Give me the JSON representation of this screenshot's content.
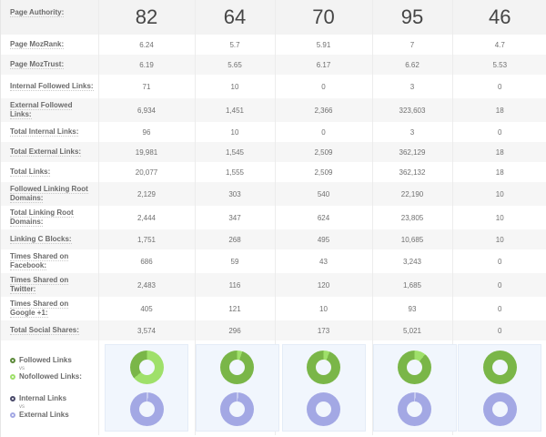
{
  "columns_count": 5,
  "header": {
    "label": "Page Authority:",
    "values": [
      "82",
      "64",
      "70",
      "95",
      "46"
    ]
  },
  "rows": [
    {
      "label": "Page MozRank:",
      "values": [
        "6.24",
        "5.7",
        "5.91",
        "7",
        "4.7"
      ]
    },
    {
      "label": "Page MozTrust:",
      "values": [
        "6.19",
        "5.65",
        "6.17",
        "6.62",
        "5.53"
      ]
    },
    {
      "label": "Internal Followed Links:",
      "values": [
        "71",
        "10",
        "0",
        "3",
        "0"
      ]
    },
    {
      "label": "External Followed Links:",
      "values": [
        "6,934",
        "1,451",
        "2,366",
        "323,603",
        "18"
      ]
    },
    {
      "label": "Total Internal Links:",
      "values": [
        "96",
        "10",
        "0",
        "3",
        "0"
      ]
    },
    {
      "label": "Total External Links:",
      "values": [
        "19,981",
        "1,545",
        "2,509",
        "362,129",
        "18"
      ]
    },
    {
      "label": "Total Links:",
      "values": [
        "20,077",
        "1,555",
        "2,509",
        "362,132",
        "18"
      ]
    },
    {
      "label": "Followed Linking Root Domains:",
      "values": [
        "2,129",
        "303",
        "540",
        "22,190",
        "10"
      ]
    },
    {
      "label": "Total Linking Root Domains:",
      "values": [
        "2,444",
        "347",
        "624",
        "23,805",
        "10"
      ]
    },
    {
      "label": "Linking C Blocks:",
      "values": [
        "1,751",
        "268",
        "495",
        "10,685",
        "10"
      ]
    },
    {
      "label": "Times Shared on Facebook:",
      "values": [
        "686",
        "59",
        "43",
        "3,243",
        "0"
      ]
    },
    {
      "label": "Times Shared on Twitter:",
      "values": [
        "2,483",
        "116",
        "120",
        "1,685",
        "0"
      ]
    },
    {
      "label": "Times Shared on Google +1:",
      "values": [
        "405",
        "121",
        "10",
        "93",
        "0"
      ]
    },
    {
      "label": "Total Social Shares:",
      "values": [
        "3,574",
        "296",
        "173",
        "5,021",
        "0"
      ]
    }
  ],
  "legend": {
    "followed": "Followed Links",
    "vs1": "vs",
    "nofollowed": "Nofollowed Links:",
    "internal": "Internal Links",
    "vs2": "vs",
    "external": "External Links"
  },
  "colors": {
    "followed": "#7ab648",
    "nofollowed": "#9fe06a",
    "internal": "#e8ecf7",
    "external": "#a3a8e4",
    "followed_dot": "#5c8a3a",
    "nofollowed_dot": "#9fe06a",
    "internal_dot": "#4a4a6a",
    "external_dot": "#a3a8e4"
  },
  "donuts": [
    {
      "followed_pct": 36,
      "internal_pct": 1
    },
    {
      "followed_pct": 95,
      "internal_pct": 1
    },
    {
      "followed_pct": 94,
      "internal_pct": 0
    },
    {
      "followed_pct": 89,
      "internal_pct": 1
    },
    {
      "followed_pct": 100,
      "internal_pct": 0
    }
  ]
}
